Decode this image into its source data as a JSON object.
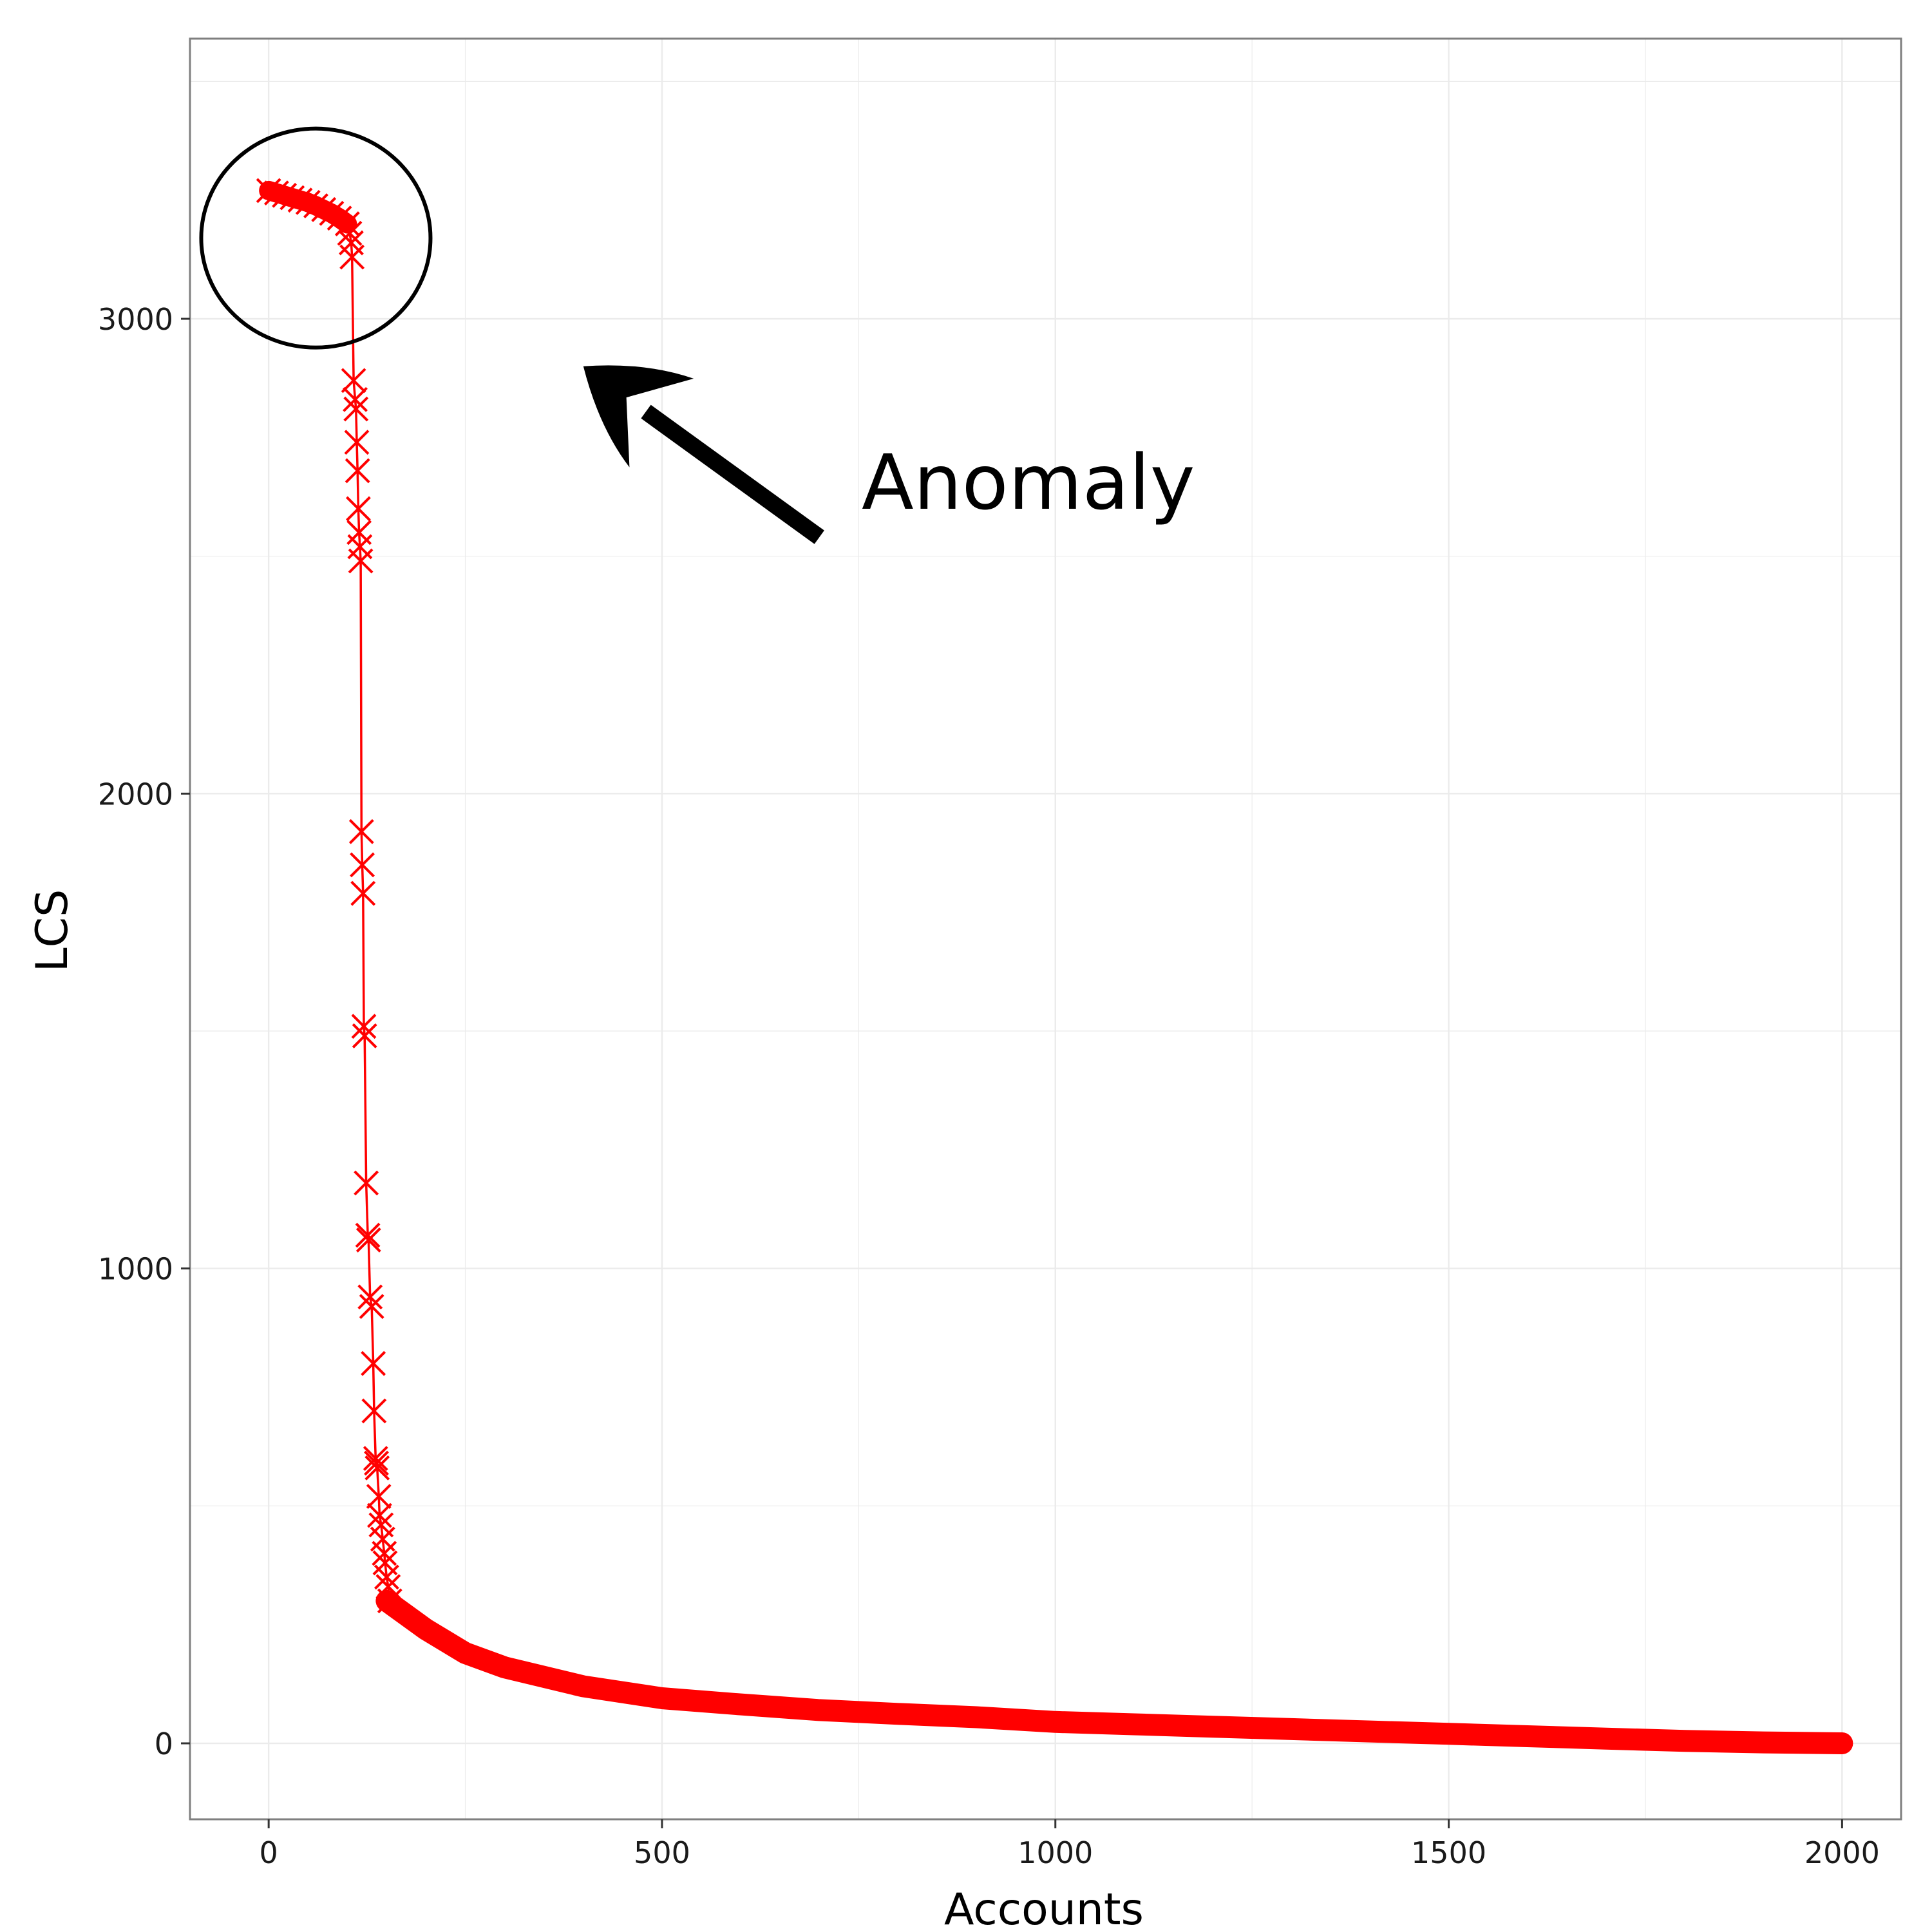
{
  "chart_data": {
    "type": "line",
    "xlabel": "Accounts",
    "ylabel": "LCS",
    "xlim": [
      -100,
      2075
    ],
    "ylim": [
      -160,
      3590
    ],
    "x_ticks": [
      0,
      500,
      1000,
      1500,
      2000
    ],
    "y_ticks": [
      0,
      1000,
      2000,
      3000
    ],
    "grid": true,
    "marker": "x",
    "colors": {
      "series": "#ff0000",
      "grid": "#ebebeb",
      "frame": "#7f7f7f",
      "text": "#1a1a1a"
    },
    "series": [
      {
        "marker_points": [
          [
            0,
            3270
          ],
          [
            10,
            3265
          ],
          [
            20,
            3260
          ],
          [
            30,
            3255
          ],
          [
            40,
            3250
          ],
          [
            50,
            3245
          ],
          [
            60,
            3238
          ],
          [
            70,
            3230
          ],
          [
            80,
            3222
          ],
          [
            90,
            3212
          ],
          [
            100,
            3200
          ],
          [
            103,
            3180
          ],
          [
            105,
            3160
          ],
          [
            106,
            3130
          ],
          [
            108,
            2870
          ],
          [
            110,
            2830
          ],
          [
            111,
            2810
          ],
          [
            112,
            2740
          ],
          [
            113,
            2680
          ],
          [
            114,
            2600
          ],
          [
            115,
            2550
          ],
          [
            116,
            2520
          ],
          [
            117,
            2490
          ],
          [
            118,
            1920
          ],
          [
            119,
            1850
          ],
          [
            120,
            1790
          ],
          [
            121,
            1510
          ],
          [
            122,
            1490
          ],
          [
            124,
            1180
          ],
          [
            126,
            1070
          ],
          [
            127,
            1060
          ],
          [
            129,
            940
          ],
          [
            131,
            920
          ],
          [
            133,
            800
          ],
          [
            134,
            700
          ],
          [
            136,
            600
          ],
          [
            137,
            590
          ],
          [
            138,
            580
          ],
          [
            140,
            520
          ],
          [
            141,
            480
          ],
          [
            143,
            460
          ],
          [
            145,
            430
          ],
          [
            147,
            400
          ],
          [
            148,
            380
          ],
          [
            150,
            350
          ],
          [
            152,
            330
          ],
          [
            154,
            300
          ]
        ],
        "curve_points": [
          [
            150,
            300
          ],
          [
            200,
            240
          ],
          [
            250,
            190
          ],
          [
            300,
            160
          ],
          [
            400,
            120
          ],
          [
            500,
            95
          ],
          [
            600,
            82
          ],
          [
            700,
            70
          ],
          [
            800,
            62
          ],
          [
            900,
            55
          ],
          [
            1000,
            45
          ],
          [
            1100,
            40
          ],
          [
            1200,
            35
          ],
          [
            1300,
            30
          ],
          [
            1400,
            25
          ],
          [
            1500,
            20
          ],
          [
            1600,
            15
          ],
          [
            1700,
            10
          ],
          [
            1800,
            5
          ],
          [
            1900,
            2
          ],
          [
            2000,
            0
          ]
        ]
      }
    ],
    "annotation": {
      "text": "Anomaly",
      "circle_center": [
        60,
        3170
      ],
      "arrow_from": [
        700,
        2540
      ],
      "arrow_to": [
        400,
        2900
      ]
    }
  }
}
